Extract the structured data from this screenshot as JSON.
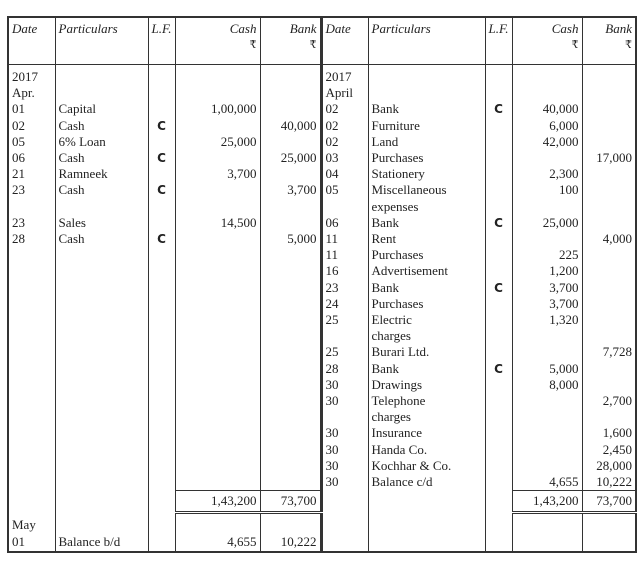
{
  "header": {
    "date": "Date",
    "particulars": "Particulars",
    "lf": "L.F.",
    "cash": "Cash",
    "bank": "Bank",
    "currency": "₹"
  },
  "rows": [
    {
      "l": [
        "2017",
        "",
        "",
        "",
        ""
      ],
      "r": [
        "2017",
        "",
        "",
        "",
        ""
      ]
    },
    {
      "l": [
        "Apr.",
        "",
        "",
        "",
        ""
      ],
      "r": [
        "April",
        "",
        "",
        "",
        ""
      ]
    },
    {
      "l": [
        "01",
        "Capital",
        "",
        "1,00,000",
        ""
      ],
      "r": [
        "02",
        "Bank",
        "C",
        "40,000",
        ""
      ]
    },
    {
      "l": [
        "02",
        "Cash",
        "C",
        "",
        "40,000"
      ],
      "r": [
        "02",
        "Furniture",
        "",
        "6,000",
        ""
      ]
    },
    {
      "l": [
        "05",
        "6% Loan",
        "",
        "25,000",
        ""
      ],
      "r": [
        "02",
        "Land",
        "",
        "42,000",
        ""
      ]
    },
    {
      "l": [
        "06",
        "Cash",
        "C",
        "",
        "25,000"
      ],
      "r": [
        "03",
        "Purchases",
        "",
        "",
        "17,000"
      ]
    },
    {
      "l": [
        "21",
        "Ramneek",
        "",
        "3,700",
        ""
      ],
      "r": [
        "04",
        "Stationery",
        "",
        "2,300",
        ""
      ]
    },
    {
      "l": [
        "23",
        "Cash",
        "C",
        "",
        "3,700"
      ],
      "r": [
        "05",
        "Miscellaneous",
        "",
        "100",
        ""
      ]
    },
    {
      "l": [
        "",
        "",
        "",
        "",
        ""
      ],
      "r": [
        "",
        "expenses",
        "",
        "",
        ""
      ]
    },
    {
      "l": [
        "23",
        "Sales",
        "",
        "14,500",
        ""
      ],
      "r": [
        "06",
        "Bank",
        "C",
        "25,000",
        ""
      ]
    },
    {
      "l": [
        "28",
        "Cash",
        "C",
        "",
        "5,000"
      ],
      "r": [
        "11",
        "Rent",
        "",
        "",
        "4,000"
      ]
    },
    {
      "l": [
        "",
        "",
        "",
        "",
        ""
      ],
      "r": [
        "11",
        "Purchases",
        "",
        "225",
        ""
      ]
    },
    {
      "l": [
        "",
        "",
        "",
        "",
        ""
      ],
      "r": [
        "16",
        "Advertisement",
        "",
        "1,200",
        ""
      ]
    },
    {
      "l": [
        "",
        "",
        "",
        "",
        ""
      ],
      "r": [
        "23",
        "Bank",
        "C",
        "3,700",
        ""
      ]
    },
    {
      "l": [
        "",
        "",
        "",
        "",
        ""
      ],
      "r": [
        "24",
        "Purchases",
        "",
        "3,700",
        ""
      ]
    },
    {
      "l": [
        "",
        "",
        "",
        "",
        ""
      ],
      "r": [
        "25",
        "Electric",
        "",
        "1,320",
        ""
      ]
    },
    {
      "l": [
        "",
        "",
        "",
        "",
        ""
      ],
      "r": [
        "",
        "charges",
        "",
        "",
        ""
      ]
    },
    {
      "l": [
        "",
        "",
        "",
        "",
        ""
      ],
      "r": [
        "25",
        "Burari Ltd.",
        "",
        "",
        "7,728"
      ]
    },
    {
      "l": [
        "",
        "",
        "",
        "",
        ""
      ],
      "r": [
        "28",
        "Bank",
        "C",
        "5,000",
        ""
      ]
    },
    {
      "l": [
        "",
        "",
        "",
        "",
        ""
      ],
      "r": [
        "30",
        "Drawings",
        "",
        "8,000",
        ""
      ]
    },
    {
      "l": [
        "",
        "",
        "",
        "",
        ""
      ],
      "r": [
        "30",
        "Telephone",
        "",
        "",
        "2,700"
      ]
    },
    {
      "l": [
        "",
        "",
        "",
        "",
        ""
      ],
      "r": [
        "",
        "charges",
        "",
        "",
        ""
      ]
    },
    {
      "l": [
        "",
        "",
        "",
        "",
        ""
      ],
      "r": [
        "30",
        "Insurance",
        "",
        "",
        "1,600"
      ]
    },
    {
      "l": [
        "",
        "",
        "",
        "",
        ""
      ],
      "r": [
        "30",
        "Handa Co.",
        "",
        "",
        "2,450"
      ]
    },
    {
      "l": [
        "",
        "",
        "",
        "",
        ""
      ],
      "r": [
        "30",
        "Kochhar & Co.",
        "",
        "",
        "28,000"
      ]
    },
    {
      "l": [
        "",
        "",
        "",
        "",
        ""
      ],
      "r": [
        "30",
        "Balance c/d",
        "",
        "4,655",
        "10,222"
      ]
    }
  ],
  "totals": {
    "l": [
      "",
      "",
      "",
      "1,43,200",
      "73,700"
    ],
    "r": [
      "",
      "",
      "",
      "1,43,200",
      "73,700"
    ]
  },
  "after": [
    {
      "l": [
        "May",
        "",
        "",
        "",
        ""
      ],
      "r": [
        "",
        "",
        "",
        "",
        ""
      ]
    },
    {
      "l": [
        "01",
        "Balance b/d",
        "",
        "4,655",
        "10,222"
      ],
      "r": [
        "",
        "",
        "",
        "",
        ""
      ]
    }
  ]
}
